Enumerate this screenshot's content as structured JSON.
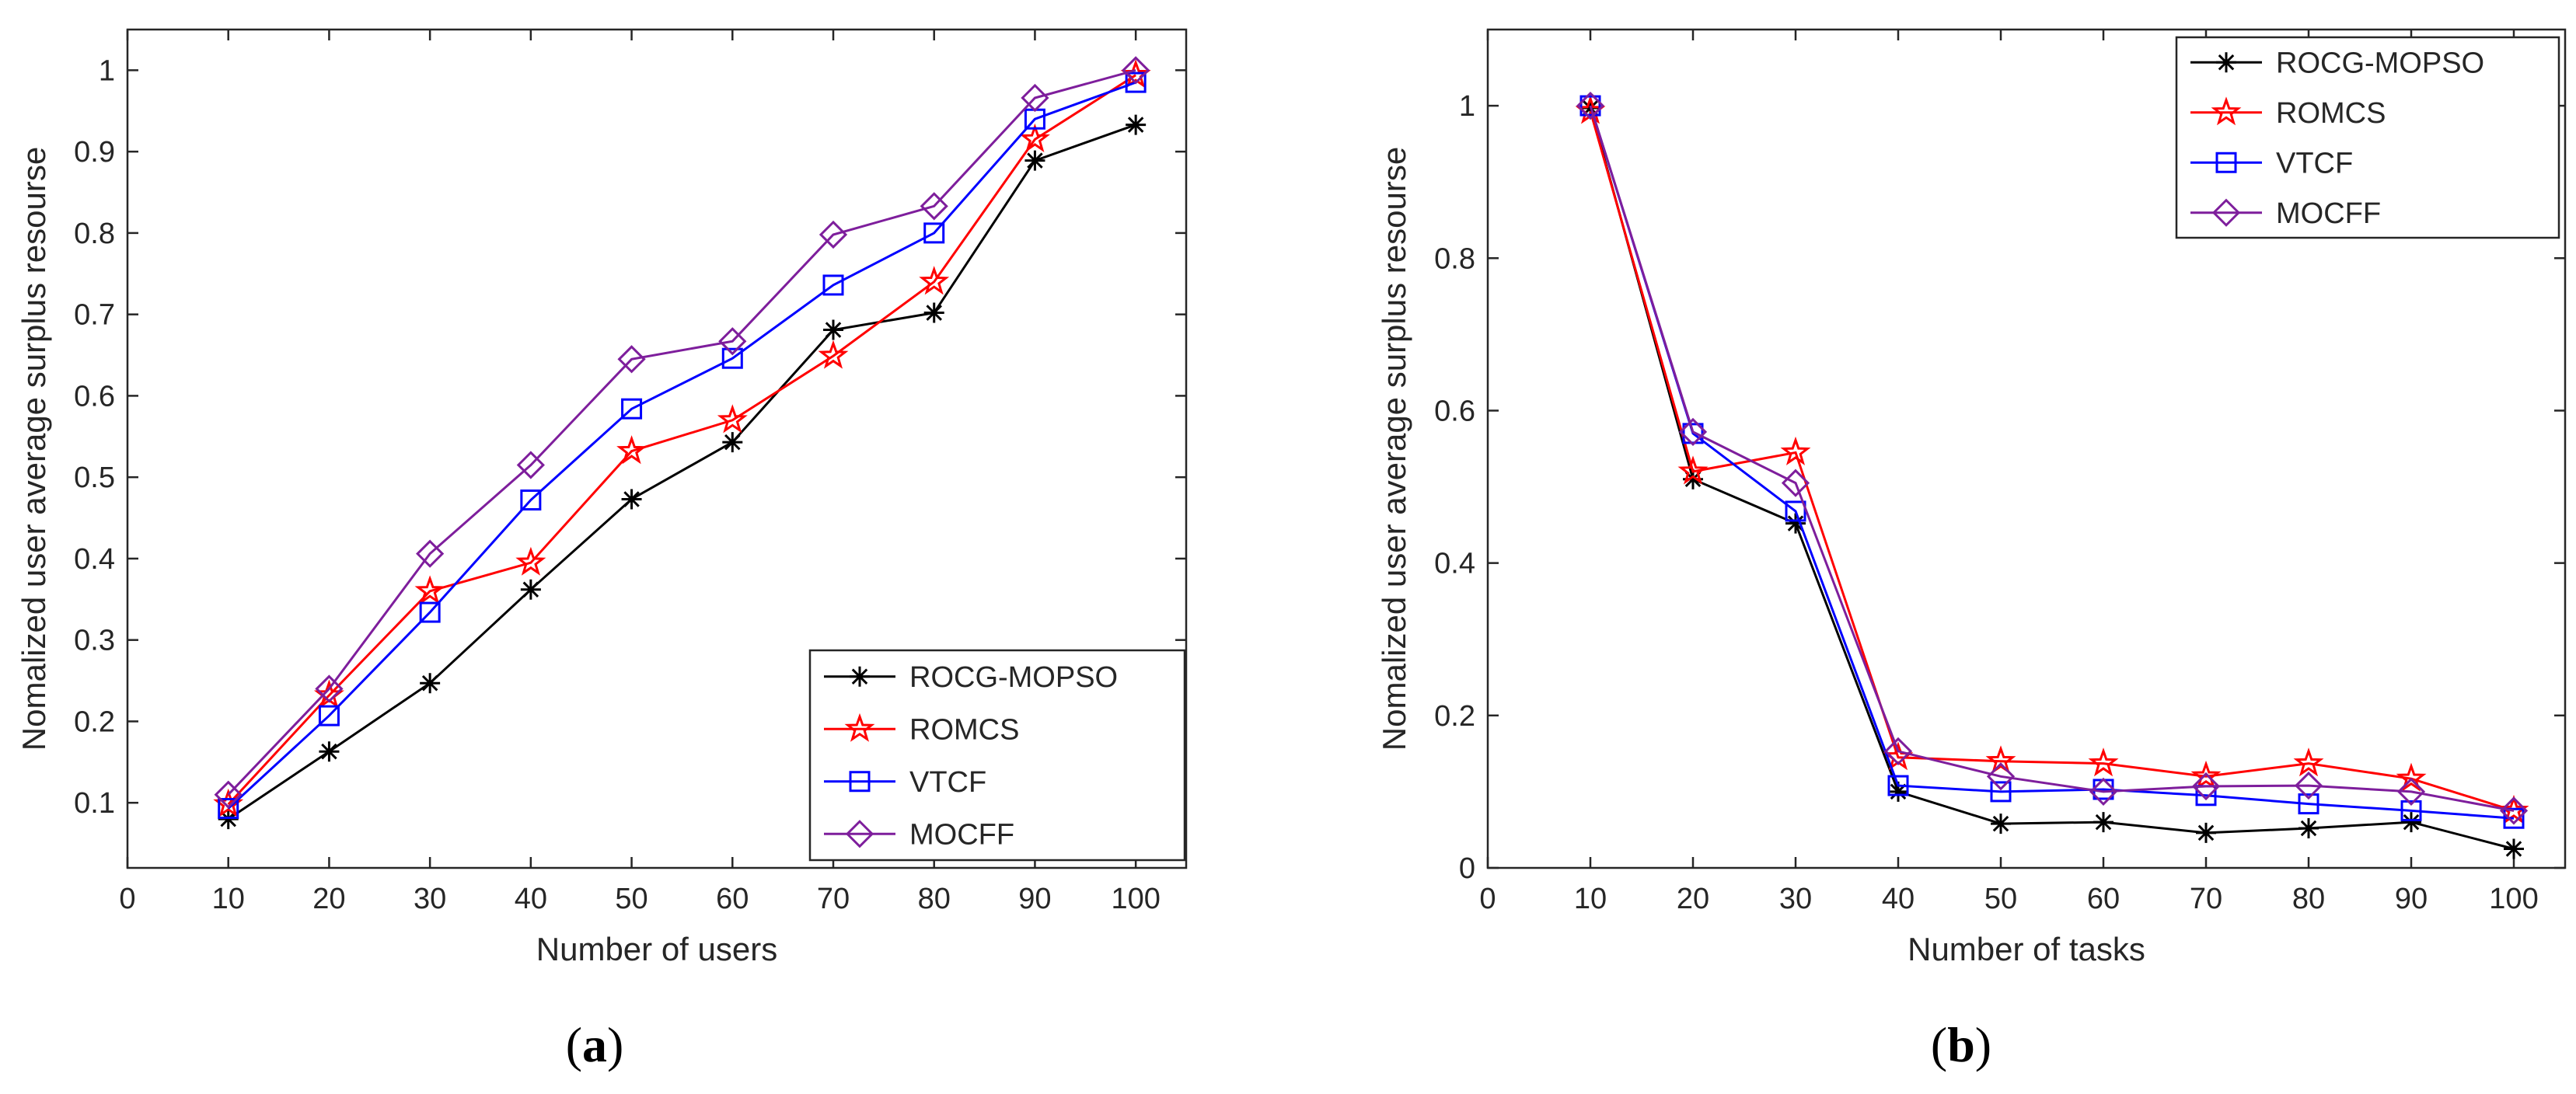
{
  "figure": {
    "panel_labels": [
      {
        "open": "(",
        "letter": "a",
        "close": ")"
      },
      {
        "open": "(",
        "letter": "b",
        "close": ")"
      }
    ]
  },
  "chart_data": [
    {
      "type": "line",
      "title": "",
      "xlabel": "Number of users",
      "ylabel": "Nomalized user average surplus resourse",
      "xlim": [
        0,
        105
      ],
      "ylim": [
        0.02,
        1.05
      ],
      "xticks": [
        0,
        10,
        20,
        30,
        40,
        50,
        60,
        70,
        80,
        90,
        100
      ],
      "yticks": [
        0.1,
        0.2,
        0.3,
        0.4,
        0.5,
        0.6,
        0.7,
        0.8,
        0.9,
        1
      ],
      "ytick_labels": [
        "0.1",
        "0.2",
        "0.3",
        "0.4",
        "0.5",
        "0.6",
        "0.7",
        "0.8",
        "0.9",
        "1"
      ],
      "legend_position": "bottom-right",
      "x": [
        10,
        20,
        30,
        40,
        50,
        60,
        70,
        80,
        90,
        100
      ],
      "series": [
        {
          "name": "ROCG-MOPSO",
          "color": "#000000",
          "marker": "asterisk",
          "values": [
            0.08,
            0.163,
            0.247,
            0.362,
            0.473,
            0.543,
            0.681,
            0.702,
            0.889,
            0.933
          ]
        },
        {
          "name": "ROMCS",
          "color": "#ff0000",
          "marker": "star",
          "values": [
            0.098,
            0.232,
            0.36,
            0.395,
            0.532,
            0.57,
            0.649,
            0.74,
            0.915,
            0.994
          ]
        },
        {
          "name": "VTCF",
          "color": "#0000ff",
          "marker": "square",
          "values": [
            0.093,
            0.207,
            0.334,
            0.472,
            0.584,
            0.646,
            0.736,
            0.8,
            0.94,
            0.985
          ]
        },
        {
          "name": "MOCFF",
          "color": "#7e1e9c",
          "marker": "diamond",
          "values": [
            0.11,
            0.24,
            0.406,
            0.515,
            0.645,
            0.667,
            0.798,
            0.833,
            0.966,
            1.0
          ]
        }
      ]
    },
    {
      "type": "line",
      "title": "",
      "xlabel": "Number of tasks",
      "ylabel": "Nomalized user average surplus resourse",
      "xlim": [
        0,
        105
      ],
      "ylim": [
        0,
        1.1
      ],
      "xticks": [
        0,
        10,
        20,
        30,
        40,
        50,
        60,
        70,
        80,
        90,
        100
      ],
      "yticks": [
        0,
        0.2,
        0.4,
        0.6,
        0.8,
        1
      ],
      "ytick_labels": [
        "0",
        "0.2",
        "0.4",
        "0.6",
        "0.8",
        "1"
      ],
      "legend_position": "top-right",
      "x": [
        10,
        20,
        30,
        40,
        50,
        60,
        70,
        80,
        90,
        100
      ],
      "series": [
        {
          "name": "ROCG-MOPSO",
          "color": "#000000",
          "marker": "asterisk",
          "values": [
            0.997,
            0.51,
            0.452,
            0.1,
            0.058,
            0.06,
            0.046,
            0.052,
            0.06,
            0.025
          ]
        },
        {
          "name": "ROMCS",
          "color": "#ff0000",
          "marker": "star",
          "values": [
            0.993,
            0.52,
            0.545,
            0.145,
            0.14,
            0.137,
            0.12,
            0.137,
            0.117,
            0.075
          ]
        },
        {
          "name": "VTCF",
          "color": "#0000ff",
          "marker": "square",
          "values": [
            1.0,
            0.57,
            0.468,
            0.108,
            0.1,
            0.103,
            0.095,
            0.084,
            0.075,
            0.065
          ]
        },
        {
          "name": "MOCFF",
          "color": "#7e1e9c",
          "marker": "diamond",
          "values": [
            1.0,
            0.572,
            0.505,
            0.153,
            0.12,
            0.1,
            0.107,
            0.108,
            0.1,
            0.075
          ]
        }
      ]
    }
  ]
}
